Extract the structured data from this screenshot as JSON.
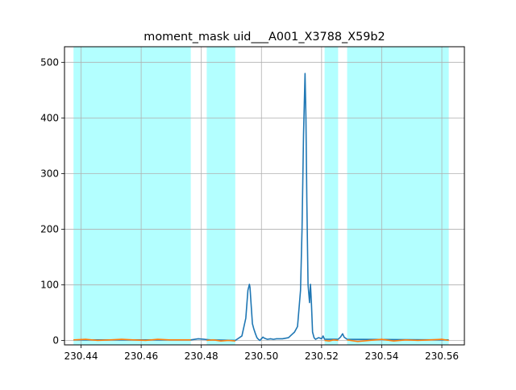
{
  "chart_data": {
    "type": "line",
    "title": "moment_mask uid___A001_X3788_X59b2",
    "xlabel": "",
    "ylabel": "",
    "xlim": [
      230.4345,
      230.5675
    ],
    "ylim": [
      -8,
      528
    ],
    "grid": true,
    "x_ticks": [
      230.44,
      230.46,
      230.48,
      230.5,
      230.52,
      230.54,
      230.56
    ],
    "x_tick_labels": [
      "230.44",
      "230.46",
      "230.48",
      "230.50",
      "230.52",
      "230.54",
      "230.56"
    ],
    "y_ticks": [
      0,
      100,
      200,
      300,
      400,
      500
    ],
    "y_tick_labels": [
      "0",
      "100",
      "200",
      "300",
      "400",
      "500"
    ],
    "masked_ranges": [
      [
        230.4375,
        230.4765
      ],
      [
        230.4818,
        230.4913
      ],
      [
        230.521,
        230.5255
      ],
      [
        230.5285,
        230.5623
      ]
    ],
    "colors": {
      "spectrum": "#1f77b4",
      "masked_overlay": "#ff7f0e",
      "mask_band": "#b3ffff",
      "grid": "#b0b0b0"
    },
    "series": [
      {
        "role": "spectrum",
        "x": [
          230.4375,
          230.45,
          230.465,
          230.4765,
          230.479,
          230.481,
          230.483,
          230.4913,
          230.4935,
          230.4948,
          230.4955,
          230.496,
          230.4962,
          230.4965,
          230.497,
          230.4975,
          230.498,
          230.4985,
          230.499,
          230.4995,
          230.5,
          230.5005,
          230.501,
          230.502,
          230.503,
          230.504,
          230.505,
          230.507,
          230.509,
          230.51,
          230.511,
          230.512,
          230.513,
          230.5135,
          230.514,
          230.5145,
          230.5148,
          230.5151,
          230.5155,
          230.516,
          230.5163,
          230.5166,
          230.517,
          230.5175,
          230.518,
          230.519,
          230.52,
          230.5205,
          230.521,
          230.5255,
          230.5263,
          230.527,
          230.5275,
          230.5285,
          230.5623
        ],
        "y": [
          1,
          1,
          1,
          1,
          3,
          2,
          1,
          0,
          8,
          40,
          90,
          101,
          95,
          70,
          30,
          20,
          12,
          5,
          2,
          0,
          3,
          6,
          4,
          2,
          3,
          2,
          3,
          3,
          5,
          10,
          15,
          25,
          90,
          200,
          370,
          480,
          400,
          250,
          100,
          68,
          101,
          70,
          15,
          5,
          2,
          5,
          3,
          8,
          2,
          2,
          6,
          12,
          6,
          2,
          1
        ]
      },
      {
        "role": "masked",
        "x": [
          230.4375,
          230.4415,
          230.4455,
          230.4495,
          230.4535,
          230.4575,
          230.4615,
          230.4655,
          230.4695,
          230.4735,
          230.4765,
          230.4818,
          230.484,
          230.4865,
          230.489,
          230.4913,
          230.521,
          230.5225,
          230.524,
          230.5255,
          230.5285,
          230.532,
          230.536,
          230.54,
          230.544,
          230.548,
          230.552,
          230.556,
          230.56,
          230.5623
        ],
        "y": [
          1,
          2,
          0,
          1,
          2,
          1,
          0,
          2,
          1,
          1,
          1,
          0,
          1,
          -1,
          0,
          -1,
          0,
          -1,
          1,
          0,
          1,
          -2,
          0,
          2,
          -1,
          1,
          0,
          1,
          2,
          0
        ]
      }
    ]
  }
}
